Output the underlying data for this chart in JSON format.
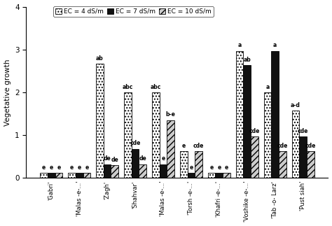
{
  "ylabel": "Vegetative growth",
  "categories": [
    "'Gabri'",
    "'Malas -e-...'",
    "'Zagh'",
    "'Shahvar'",
    "'Malas -e-...'",
    "'Torsh -e-...'",
    "'Khafri -e-...'",
    "'Voshike -e-...'",
    "'Tab -o- Larz'",
    "'Pust siah'"
  ],
  "ec4": [
    0.12,
    0.12,
    2.67,
    2.0,
    2.0,
    0.62,
    0.12,
    2.97,
    2.0,
    1.57
  ],
  "ec7": [
    0.12,
    0.12,
    0.32,
    0.68,
    0.32,
    0.12,
    0.12,
    2.63,
    2.97,
    0.97
  ],
  "ec10": [
    0.12,
    0.12,
    0.3,
    0.32,
    1.35,
    0.62,
    0.12,
    0.97,
    0.62,
    0.62
  ],
  "labels_ec4": [
    "e",
    "e",
    "ab",
    "abc",
    "abc",
    "e",
    "e",
    "a",
    "a",
    "a-d"
  ],
  "labels_ec7": [
    "e",
    "e",
    "de",
    "cde",
    "e",
    "e",
    "e",
    "ab",
    "a",
    "cde"
  ],
  "labels_ec10": [
    "e",
    "e",
    "de",
    "de",
    "b-e",
    "cde",
    "e",
    "cde",
    "cde",
    "cde"
  ],
  "color_ec4": "#ffffff",
  "color_ec7": "#111111",
  "color_ec10": "#cccccc",
  "hatch_ec4": "....",
  "hatch_ec7": "",
  "hatch_ec10": "////",
  "ylim": [
    0,
    4
  ],
  "yticks": [
    0,
    1,
    2,
    3,
    4
  ],
  "bar_width": 0.27,
  "legend_labels": [
    "EC = 4 dS/m",
    "EC = 7 dS/m",
    "EC = 10 dS/m"
  ],
  "figsize": [
    4.74,
    3.23
  ],
  "dpi": 100
}
